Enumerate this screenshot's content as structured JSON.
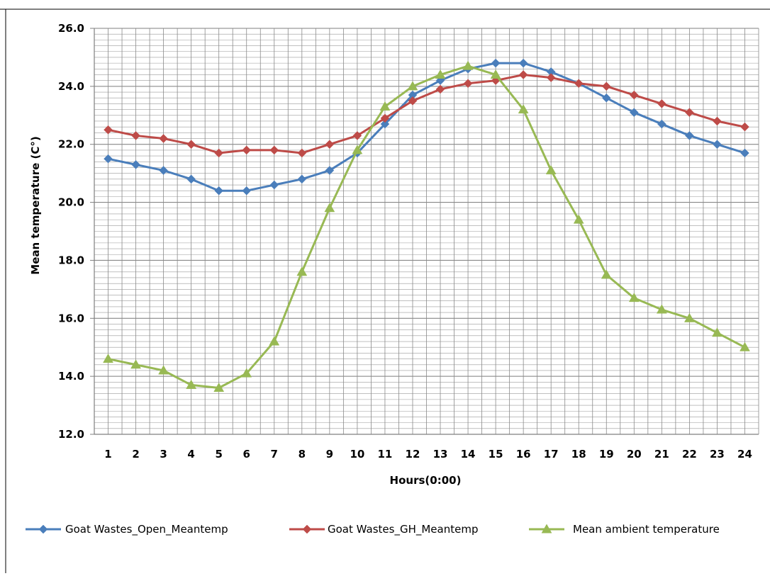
{
  "chart_data": {
    "type": "line",
    "title": "",
    "xlabel": "Hours(0:00)",
    "ylabel": "Mean temperature (C°)",
    "categories": [
      "1",
      "2",
      "3",
      "4",
      "5",
      "6",
      "7",
      "8",
      "9",
      "10",
      "11",
      "12",
      "13",
      "14",
      "15",
      "16",
      "17",
      "18",
      "19",
      "20",
      "21",
      "22",
      "23",
      "24"
    ],
    "ylim": [
      12.0,
      26.0
    ],
    "yticks": [
      "12.0",
      "14.0",
      "16.0",
      "18.0",
      "20.0",
      "22.0",
      "24.0",
      "26.0"
    ],
    "grid": true,
    "legend_position": "bottom",
    "series": [
      {
        "name": "Goat Wastes_Open_Meantemp",
        "color": "#4a7ebb",
        "marker": "diamond",
        "values": [
          21.5,
          21.3,
          21.1,
          20.8,
          20.4,
          20.4,
          20.6,
          20.8,
          21.1,
          21.7,
          22.7,
          23.7,
          24.2,
          24.6,
          24.8,
          24.8,
          24.5,
          24.1,
          23.6,
          23.1,
          22.7,
          22.3,
          22.0,
          21.7
        ]
      },
      {
        "name": "Goat Wastes_GH_Meantemp",
        "color": "#be4b48",
        "marker": "diamond",
        "values": [
          22.5,
          22.3,
          22.2,
          22.0,
          21.7,
          21.8,
          21.8,
          21.7,
          22.0,
          22.3,
          22.9,
          23.5,
          23.9,
          24.1,
          24.2,
          24.4,
          24.3,
          24.1,
          24.0,
          23.7,
          23.4,
          23.1,
          22.8,
          22.6
        ]
      },
      {
        "name": "Mean ambient temperature",
        "color": "#98b954",
        "marker": "triangle",
        "values": [
          14.6,
          14.4,
          14.2,
          13.7,
          13.6,
          14.1,
          15.2,
          17.6,
          19.8,
          21.8,
          23.3,
          24.0,
          24.4,
          24.7,
          24.4,
          23.2,
          21.1,
          19.4,
          17.5,
          16.7,
          16.3,
          16.0,
          15.5,
          15.0
        ]
      }
    ]
  }
}
